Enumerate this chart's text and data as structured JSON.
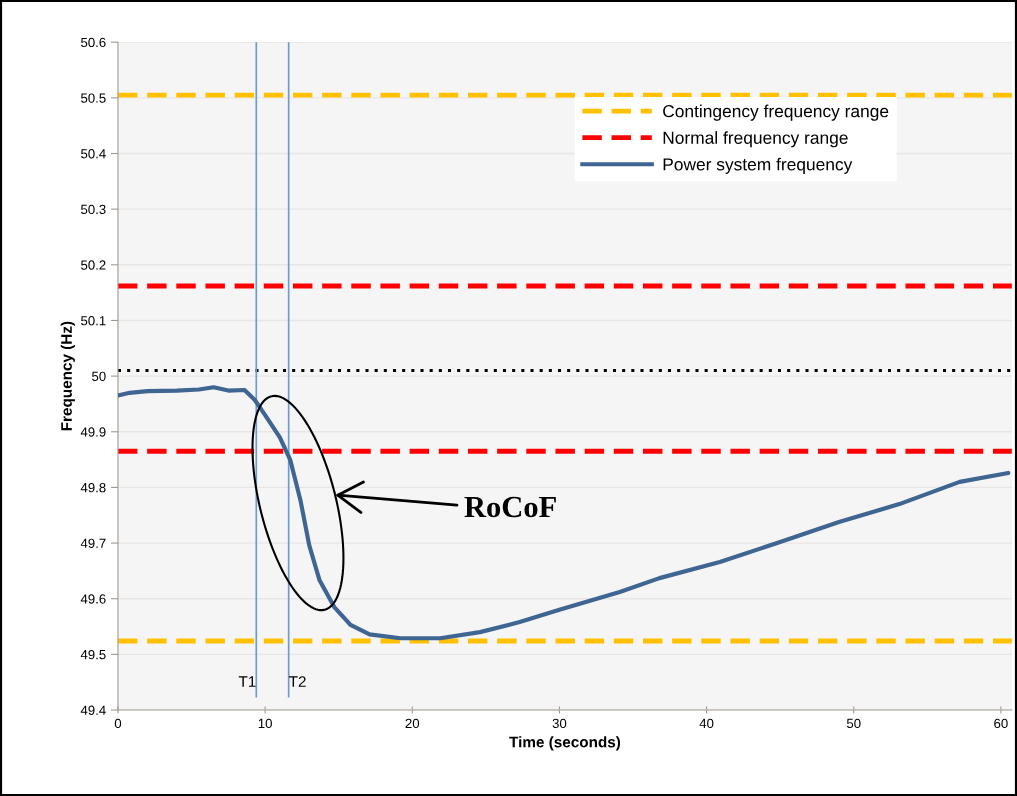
{
  "chart_data": {
    "type": "line",
    "xlabel": "Time (seconds)",
    "ylabel": "Frequency (Hz)",
    "xlim": [
      0,
      60.75
    ],
    "ylim": [
      49.4,
      50.6
    ],
    "xticks": [
      0,
      10,
      20,
      30,
      40,
      50,
      60
    ],
    "yticks": [
      49.4,
      49.5,
      49.6,
      49.7,
      49.8,
      49.9,
      50,
      50.1,
      50.2,
      50.3,
      50.4,
      50.5,
      50.6
    ],
    "grid": "y",
    "legend": "top right",
    "series": [
      {
        "name": "Contingency frequency range",
        "color": "#ffc000",
        "line_style": "dashed",
        "x": [
          0,
          60.75
        ],
        "values": [
          50.505,
          50.505
        ]
      },
      {
        "color": "#ffc000",
        "line_style": "dashed",
        "x": [
          0,
          60.75
        ],
        "values": [
          49.524,
          49.524
        ]
      },
      {
        "name": "Normal frequency range",
        "color": "#ff0000",
        "line_style": "dashed",
        "x": [
          0,
          60.75
        ],
        "values": [
          50.162,
          50.162
        ]
      },
      {
        "color": "#ff0000",
        "line_style": "dashed",
        "x": [
          0,
          60.75
        ],
        "values": [
          49.865,
          49.865
        ]
      },
      {
        "name": "Power system frequency",
        "color": "#3f6593",
        "line_style": "solid",
        "x": [
          0,
          0.8,
          2,
          4,
          5.5,
          6.5,
          7.5,
          8.6,
          9.3,
          10,
          11,
          11.7,
          12.4,
          13,
          13.7,
          14.7,
          15.8,
          17.1,
          19.2,
          21.9,
          24.6,
          27.3,
          30,
          34.1,
          36.8,
          40.9,
          45,
          49,
          53.1,
          57.2,
          60.5
        ],
        "values": [
          49.965,
          49.97,
          49.973,
          49.974,
          49.976,
          49.98,
          49.974,
          49.975,
          49.957,
          49.93,
          49.89,
          49.85,
          49.777,
          49.696,
          49.633,
          49.585,
          49.553,
          49.536,
          49.529,
          49.529,
          49.54,
          49.558,
          49.58,
          49.612,
          49.637,
          49.666,
          49.702,
          49.738,
          49.77,
          49.81,
          49.826
        ]
      }
    ],
    "ref_lines": [
      {
        "axis": "y",
        "value": 50.01,
        "color": "#000000",
        "line_style": "dotted"
      },
      {
        "axis": "x",
        "value": 9.4,
        "label": "T1",
        "color": "#6a9bd1",
        "line_style": "solid"
      },
      {
        "axis": "x",
        "value": 11.6,
        "label": "T2",
        "color": "#6a9bd1",
        "line_style": "solid"
      }
    ],
    "annotations": [
      "RoCoF"
    ]
  }
}
